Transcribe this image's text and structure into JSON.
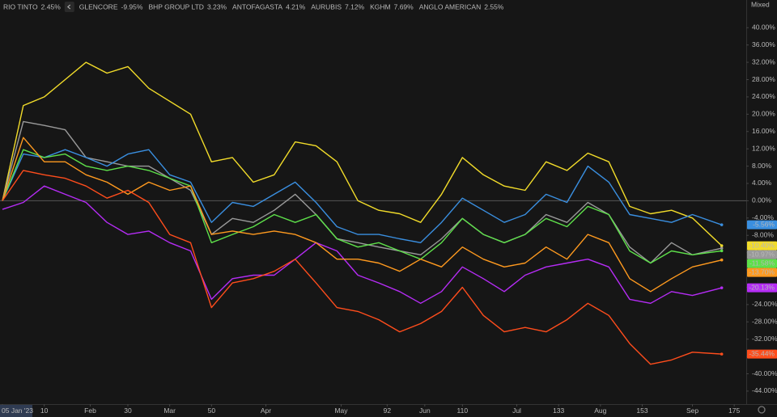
{
  "chart_data": {
    "type": "line",
    "scale_mode": "Mixed",
    "x": [
      0,
      5,
      10,
      15,
      20,
      25,
      30,
      35,
      40,
      45,
      50,
      55,
      60,
      65,
      70,
      75,
      80,
      85,
      90,
      95,
      100,
      105,
      110,
      115,
      120,
      125,
      130,
      135,
      140,
      145,
      150,
      155,
      160,
      165,
      172
    ],
    "xlim": [
      0,
      180
    ],
    "xticks": [
      {
        "value": 0,
        "label": "05 Jan '23"
      },
      10,
      {
        "value": 21,
        "label": "Feb"
      },
      30,
      {
        "value": 40,
        "label": "Mar"
      },
      50,
      {
        "value": 63,
        "label": "Apr"
      },
      {
        "value": 81,
        "label": "May"
      },
      92,
      {
        "value": 101,
        "label": "Jun"
      },
      110,
      {
        "value": 123,
        "label": "Jul"
      },
      133,
      {
        "value": 143,
        "label": "Aug"
      },
      153,
      {
        "value": 165,
        "label": "Sep"
      },
      175
    ],
    "ylim": [
      -47,
      46.4
    ],
    "yticks": [
      {
        "value": -44,
        "label": "-44.00%"
      },
      {
        "value": -40,
        "label": "-40.00%"
      },
      {
        "value": -36,
        "label": "-36.00%"
      },
      {
        "value": -32,
        "label": "-32.00%"
      },
      {
        "value": -28,
        "label": "-28.00%"
      },
      {
        "value": -24,
        "label": "-24.00%"
      },
      {
        "value": -20,
        "label": "-20.00%"
      },
      {
        "value": -16,
        "label": "-16.00%"
      },
      {
        "value": -12,
        "label": "-12.00%"
      },
      {
        "value": -8,
        "label": "-8.00%"
      },
      {
        "value": -4,
        "label": "-4.00%"
      },
      {
        "value": 0,
        "label": "0.00%"
      },
      {
        "value": 4,
        "label": "4.00%"
      },
      {
        "value": 8,
        "label": "8.00%"
      },
      {
        "value": 12,
        "label": "12.00%"
      },
      {
        "value": 16,
        "label": "16.00%"
      },
      {
        "value": 20,
        "label": "20.00%"
      },
      {
        "value": 24,
        "label": "24.00%"
      },
      {
        "value": 28,
        "label": "28.00%"
      },
      {
        "value": 32,
        "label": "32.00%"
      },
      {
        "value": 36,
        "label": "36.00%"
      },
      {
        "value": 40,
        "label": "40.00%"
      }
    ],
    "series": [
      {
        "name": "RIO TINTO",
        "legend_value": "2.45%",
        "color": "#ff9a1f",
        "end_label": "-13.70%",
        "values": [
          0,
          14.6,
          9,
          9,
          6,
          4.3,
          1.5,
          4.3,
          2.4,
          3.4,
          -7.8,
          -7,
          -7.8,
          -7,
          -7.8,
          -9.7,
          -13.5,
          -13.5,
          -14.4,
          -16.3,
          -13.5,
          -15.3,
          -10.7,
          -13.5,
          -15.3,
          -14.4,
          -10.7,
          -13.5,
          -7.8,
          -9.7,
          -18,
          -21,
          -18,
          -15.3,
          -13.7
        ]
      },
      {
        "name": "GLENCORE",
        "legend_value": "-9.95%",
        "color": "#b52cf5",
        "end_label": "-20.13%",
        "values": [
          -2,
          -0.4,
          3.4,
          1.5,
          -0.4,
          -5,
          -7.8,
          -7,
          -9.7,
          -11.6,
          -22.8,
          -18,
          -17.2,
          -17.2,
          -13.5,
          -9.7,
          -11.6,
          -17.2,
          -19,
          -21,
          -23.7,
          -21,
          -15.3,
          -18,
          -21,
          -17.2,
          -15.3,
          -14.4,
          -13.5,
          -15.3,
          -22.8,
          -23.7,
          -21,
          -21.9,
          -20.13
        ]
      },
      {
        "name": "BHP GROUP LTD",
        "legend_value": "3.23%",
        "color": "#5ee04a",
        "end_label": "-11.58%",
        "values": [
          0,
          11.8,
          10,
          10.8,
          8,
          7,
          8,
          7,
          5.2,
          3.4,
          -9.7,
          -7.8,
          -6,
          -3.2,
          -5,
          -3.2,
          -8.8,
          -10.7,
          -9.7,
          -11.6,
          -13.5,
          -9.7,
          -4.1,
          -7.8,
          -9.7,
          -7.8,
          -4.1,
          -6,
          -1.3,
          -3.2,
          -11.6,
          -14.4,
          -11.6,
          -12.5,
          -11.58
        ]
      },
      {
        "name": "ANTOFAGASTA",
        "legend_value": "4.21%",
        "color": "#3a8fe0",
        "end_label": "-5.56%",
        "values": [
          0,
          10.8,
          10,
          11.8,
          10,
          8,
          10.8,
          11.8,
          6,
          4.3,
          -5,
          -0.4,
          -1.3,
          1.5,
          4.3,
          -0.4,
          -6,
          -7.8,
          -7.8,
          -8.8,
          -9.7,
          -5,
          0.6,
          -2.2,
          -5,
          -3.2,
          1.5,
          -0.4,
          8,
          4.3,
          -3.2,
          -4.1,
          -5,
          -3.2,
          -5.56
        ]
      },
      {
        "name": "AURUBIS",
        "legend_value": "7.12%",
        "color": "#f2dc2a",
        "end_label": "-10.40%",
        "values": [
          0,
          22,
          24,
          28,
          32,
          29.5,
          31,
          26,
          23,
          20,
          9,
          10,
          4.3,
          6,
          13.6,
          12.7,
          9,
          0,
          -2.2,
          -3,
          -5,
          1.5,
          10,
          6,
          3.4,
          2.4,
          9,
          7,
          11,
          9,
          -1.3,
          -3,
          -2.2,
          -4,
          -10.4
        ]
      },
      {
        "name": "KGHM",
        "legend_value": "7.69%",
        "color": "#9a9a9a",
        "end_label": "-10.97%",
        "values": [
          0,
          18.3,
          17.4,
          16.4,
          10,
          9,
          8,
          8,
          5.2,
          2.4,
          -7.8,
          -4.1,
          -5,
          -2.2,
          1.5,
          -3.2,
          -8.8,
          -9.7,
          -10.7,
          -11.6,
          -12.5,
          -8.8,
          -4.1,
          -7.8,
          -9.7,
          -7.8,
          -3.2,
          -5,
          -0.4,
          -3.2,
          -10.7,
          -14.4,
          -9.7,
          -12.5,
          -10.97
        ]
      },
      {
        "name": "ANGLO AMERICAN",
        "legend_value": "2.55%",
        "color": "#ff4d1c",
        "end_label": "-35.44%",
        "values": [
          0,
          7,
          6,
          5.2,
          3.4,
          0.6,
          2.4,
          -0.4,
          -7.8,
          -9.7,
          -24.7,
          -19,
          -18,
          -16.3,
          -13.5,
          -19,
          -24.7,
          -25.6,
          -27.5,
          -30.3,
          -28.4,
          -25.6,
          -20,
          -26.5,
          -30.3,
          -29.3,
          -30.3,
          -27.5,
          -23.7,
          -26.5,
          -33,
          -37.8,
          -36.8,
          -35,
          -35.44
        ]
      }
    ]
  }
}
